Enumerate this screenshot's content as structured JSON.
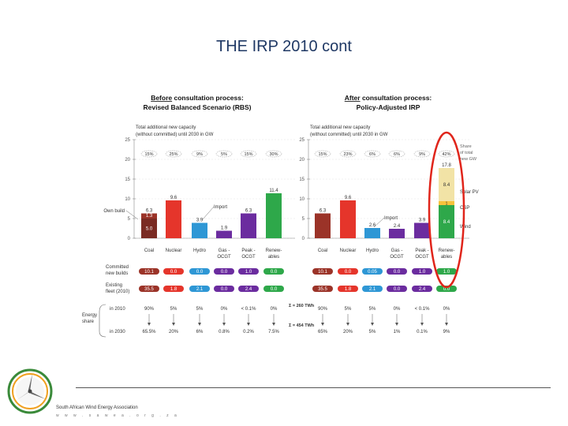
{
  "slide": {
    "title": "THE IRP 2010 cont",
    "footer_org": "South African Wind Energy Association",
    "footer_url": "w w w . s a w e a . o r g . z a"
  },
  "colors": {
    "coal": "#9b3328",
    "coal_dark": "#7a2b23",
    "nuclear": "#e5352b",
    "hydro": "#2e97d5",
    "gas": "#6b2c9f",
    "renew": "#2ea84a",
    "import": "#aaaaaa",
    "solar": "#f2e3a6",
    "csp": "#f7c23c",
    "highlight": "#e0251b",
    "title": "#1f3864"
  },
  "left_panel": {
    "title_emph": "Before",
    "title_rest": " consultation process:",
    "title_line2": "Revised Balanced Scenario (RBS)",
    "subtitle_line1": "Total additional new capacity",
    "subtitle_line2": "(without committed) until 2030 in GW",
    "label_own_build": "Own build",
    "label_import": "Import",
    "label_committed": "Committed new builds",
    "label_existing": "Existing fleet (2010)",
    "label_energy_share": "Energy share"
  },
  "right_panel": {
    "title_emph": "After",
    "title_rest": " consultation process:",
    "title_line2": "Policy-Adjusted IRP",
    "subtitle_line1": "Total additional new capacity",
    "subtitle_line2": "(without committed) until 2030 in GW",
    "label_import": "Import",
    "label_share": "Share of total new GW",
    "label_solar_pv": "Solar PV",
    "label_csp": "CSP",
    "label_wind": "Wind"
  },
  "energy_notes": {
    "twh_2010": "Σ = 260 TWh",
    "twh_2030": "Σ = 454 TWh"
  },
  "chart_data": [
    {
      "type": "bar",
      "title": "Before consultation process: Revised Balanced Scenario (RBS)",
      "ylabel": "Total additional new capacity (without committed) until 2030 in GW",
      "ylim": [
        0,
        25
      ],
      "yticks": [
        0,
        5,
        10,
        15,
        20,
        25
      ],
      "categories": [
        "Coal",
        "Nuclear",
        "Hydro",
        "Gas - OCGT",
        "Peak - OCGT",
        "Renew-ables"
      ],
      "series": [
        {
          "name": "Own build",
          "values": [
            5.0,
            9.6,
            3.9,
            0,
            6.3,
            11.4
          ]
        },
        {
          "name": "Import",
          "values": [
            1.3,
            0,
            0,
            1.9,
            0,
            0
          ]
        }
      ],
      "bar_labels": [
        "6.3",
        "9.6",
        "3.9",
        "1.9",
        "6.3",
        "11.4"
      ],
      "coal_split_labels": [
        "1.3",
        "5.0"
      ],
      "share_labels": [
        "15%",
        "25%",
        "9%",
        "5%",
        "15%",
        "30%"
      ],
      "committed_new_builds": [
        "10.1",
        "0.0",
        "0.0",
        "0.0",
        "1.0",
        "0.0"
      ],
      "existing_fleet_2010": [
        "35.5",
        "1.8",
        "2.1",
        "0.0",
        "2.4",
        "0.0"
      ],
      "energy_share_2010": [
        "90%",
        "5%",
        "5%",
        "0%",
        "< 0.1%",
        "0%"
      ],
      "energy_share_2030": [
        "65.5%",
        "20%",
        "6%",
        "0.8%",
        "0.2%",
        "7.5%"
      ]
    },
    {
      "type": "bar",
      "title": "After consultation process: Policy-Adjusted IRP",
      "ylabel": "Total additional new capacity (without committed) until 2030 in GW",
      "ylim": [
        0,
        25
      ],
      "yticks": [
        0,
        5,
        10,
        15,
        20,
        25
      ],
      "categories": [
        "Coal",
        "Nuclear",
        "Hydro",
        "Gas - OCGT",
        "Peak - OCGT",
        "Renew-ables"
      ],
      "series": [
        {
          "name": "Own build",
          "values": [
            6.3,
            9.6,
            0,
            0,
            3.9,
            0
          ]
        },
        {
          "name": "Import",
          "values": [
            0,
            0,
            2.6,
            2.4,
            0,
            0
          ]
        },
        {
          "name": "Wind",
          "values": [
            0,
            0,
            0,
            0,
            0,
            8.4
          ]
        },
        {
          "name": "CSP",
          "values": [
            0,
            0,
            0,
            0,
            0,
            1.0
          ]
        },
        {
          "name": "Solar PV",
          "values": [
            0,
            0,
            0,
            0,
            0,
            8.4
          ]
        }
      ],
      "bar_labels": [
        "6.3",
        "9.6",
        "2.6",
        "2.4",
        "3.9",
        "17.8"
      ],
      "share_labels": [
        "15%",
        "23%",
        "6%",
        "6%",
        "9%",
        "42%"
      ],
      "committed_new_builds": [
        "10.1",
        "0.0",
        "0.05",
        "0.0",
        "1.0",
        "1.0"
      ],
      "existing_fleet_2010": [
        "35.5",
        "1.8",
        "2.1",
        "0.0",
        "2.4",
        "0.0"
      ],
      "energy_share_2010": [
        "90%",
        "5%",
        "5%",
        "0%",
        "< 0.1%",
        "0%"
      ],
      "energy_share_2030": [
        "65%",
        "20%",
        "5%",
        "1%",
        "0.1%",
        "9%"
      ]
    }
  ]
}
